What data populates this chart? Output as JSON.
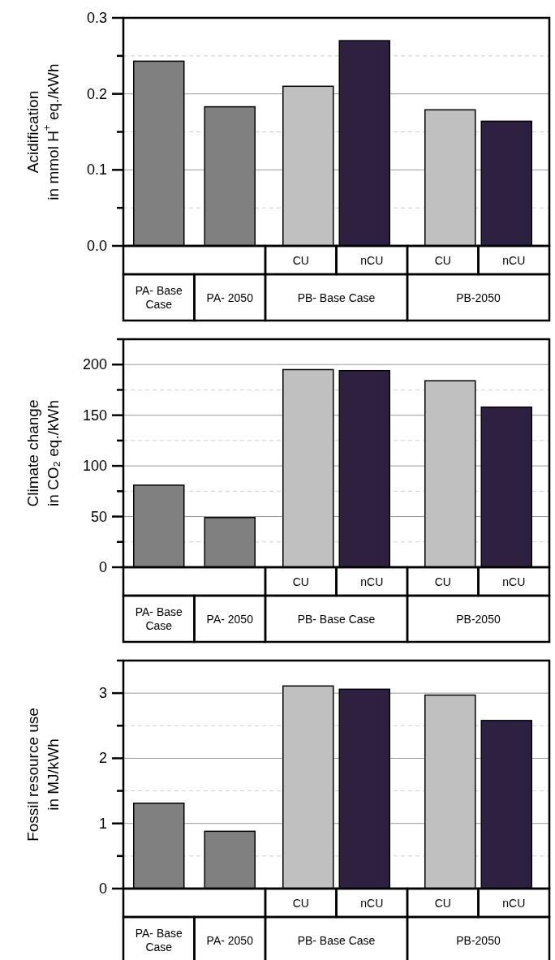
{
  "chart_data": [
    {
      "type": "bar",
      "ylabel": "Acidification\nin mmol H$^{+}$ eq./kWh",
      "categories": [
        "PA- Base Case",
        "PA- 2050",
        "PB- Base Case",
        "PB-2050"
      ],
      "series": [
        {
          "color": "#808080",
          "values": [
            0.243,
            0.183,
            null,
            null
          ]
        },
        {
          "name": "CU",
          "color": "#c0c0c0",
          "values": [
            null,
            null,
            0.21,
            0.179
          ]
        },
        {
          "name": "nCU",
          "color": "#2e2040",
          "values": [
            null,
            null,
            0.27,
            0.164
          ]
        }
      ],
      "ylim": [
        0,
        0.3
      ],
      "yticks": [
        {
          "value": 0,
          "label": "0.0"
        },
        {
          "value": 0.05,
          "label": null
        },
        {
          "value": 0.1,
          "label": "0.1"
        },
        {
          "value": 0.15,
          "label": null
        },
        {
          "value": 0.2,
          "label": "0.2"
        },
        {
          "value": 0.25,
          "label": null
        },
        {
          "value": 0.3,
          "label": "0.3"
        }
      ],
      "grid": "y"
    },
    {
      "type": "bar",
      "ylabel": "Climate change\nin CO₂ eq./kWh",
      "categories": [
        "PA- Base Case",
        "PA- 2050",
        "PB- Base Case",
        "PB-2050"
      ],
      "series": [
        {
          "color": "#808080",
          "values": [
            81,
            49,
            null,
            null
          ]
        },
        {
          "name": "CU",
          "color": "#c0c0c0",
          "values": [
            null,
            null,
            195,
            184
          ]
        },
        {
          "name": "nCU",
          "color": "#2e2040",
          "values": [
            null,
            null,
            194,
            158
          ]
        }
      ],
      "ylim": [
        0,
        225
      ],
      "yticks": [
        0,
        {
          "value": 25,
          "label": null
        },
        50,
        {
          "value": 75,
          "label": null
        },
        100,
        {
          "value": 125,
          "label": null
        },
        150,
        {
          "value": 175,
          "label": null
        },
        200,
        {
          "value": 225,
          "label": null
        }
      ],
      "grid": "y"
    },
    {
      "type": "bar",
      "ylabel": "Fossil resource use\nin MJ/kWh",
      "categories": [
        "PA- Base Case",
        "PA- 2050",
        "PB- Base Case",
        "PB-2050"
      ],
      "series": [
        {
          "color": "#808080",
          "values": [
            1.31,
            0.88,
            null,
            null
          ]
        },
        {
          "name": "CU",
          "color": "#c0c0c0",
          "values": [
            null,
            null,
            3.11,
            2.97
          ]
        },
        {
          "name": "nCU",
          "color": "#2e2040",
          "values": [
            null,
            null,
            3.06,
            2.58
          ]
        }
      ],
      "ylim": [
        0,
        3.5
      ],
      "yticks": [
        0,
        {
          "value": 0.5,
          "label": null
        },
        1,
        {
          "value": 1.5,
          "label": null
        },
        2,
        {
          "value": 2.5,
          "label": null
        },
        3,
        {
          "value": 3.5,
          "label": null
        }
      ],
      "grid": "y"
    }
  ]
}
